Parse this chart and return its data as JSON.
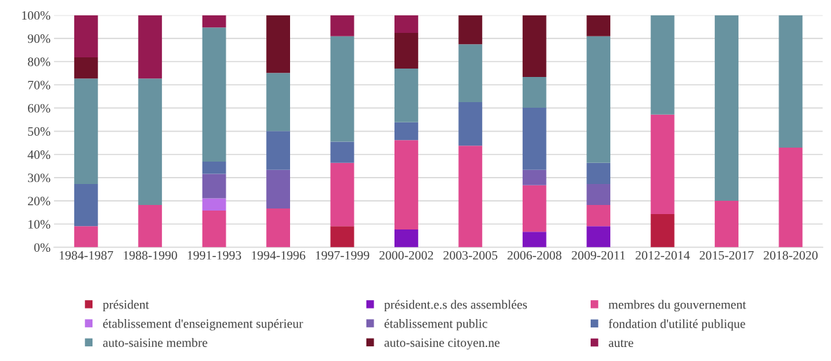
{
  "chart_data": {
    "type": "bar",
    "stacked": true,
    "categories": [
      "1984-1987",
      "1988-1990",
      "1991-1993",
      "1994-1996",
      "1997-1999",
      "2000-2002",
      "2003-2005",
      "2006-2008",
      "2009-2011",
      "2012-2014",
      "2015-2017",
      "2018-2020"
    ],
    "ylim": [
      0,
      100
    ],
    "yticks": [
      {
        "value": 0,
        "label": "0%"
      },
      {
        "value": 10,
        "label": "10%"
      },
      {
        "value": 20,
        "label": "20%"
      },
      {
        "value": 30,
        "label": "30%"
      },
      {
        "value": 40,
        "label": "40%"
      },
      {
        "value": 50,
        "label": "50%"
      },
      {
        "value": 60,
        "label": "60%"
      },
      {
        "value": 70,
        "label": "70%"
      },
      {
        "value": 80,
        "label": "80%"
      },
      {
        "value": 90,
        "label": "90%"
      },
      {
        "value": 100,
        "label": "100%"
      }
    ],
    "grid": "y",
    "legend": "bottom",
    "series": [
      {
        "name": "président",
        "color": "#b81e40",
        "values": [
          0,
          0,
          0,
          0,
          9.1,
          0,
          0,
          0,
          0,
          14.3,
          0,
          0
        ]
      },
      {
        "name": "président.e.s des assemblées",
        "color": "#7e14c0",
        "values": [
          0,
          0,
          0,
          0,
          0,
          7.7,
          0,
          6.7,
          9.1,
          0,
          0,
          0
        ]
      },
      {
        "name": "membres du gouvernement",
        "color": "#df488e",
        "values": [
          9.1,
          18.2,
          15.8,
          16.7,
          27.3,
          38.5,
          43.8,
          20,
          9.1,
          42.9,
          20,
          42.9
        ]
      },
      {
        "name": "établissement d'enseignement supérieur",
        "color": "#bb6fea",
        "values": [
          0,
          0,
          5.3,
          0,
          0,
          0,
          0,
          0,
          0,
          0,
          0,
          0
        ]
      },
      {
        "name": "établissement public",
        "color": "#7a60b0",
        "values": [
          0,
          0,
          10.5,
          16.7,
          0,
          0,
          0,
          6.7,
          9.1,
          0,
          0,
          0
        ]
      },
      {
        "name": "fondation d'utilité publique",
        "color": "#5970a8",
        "values": [
          18.2,
          0,
          5.3,
          16.7,
          9.1,
          7.7,
          18.7,
          26.7,
          9.1,
          0,
          0,
          0
        ]
      },
      {
        "name": "auto-saisine membre",
        "color": "#6893a0",
        "values": [
          45.4,
          54.5,
          57.8,
          25,
          45.4,
          23.1,
          25,
          13.3,
          54.5,
          42.8,
          80,
          57.1
        ]
      },
      {
        "name": "auto-saisine citoyen.ne",
        "color": "#6e1228",
        "values": [
          9.1,
          0,
          0,
          24.9,
          0,
          15.4,
          12.5,
          26.6,
          9.1,
          0,
          0,
          0
        ]
      },
      {
        "name": "autre",
        "color": "#961a52",
        "values": [
          18.2,
          27.3,
          5.3,
          0,
          9.1,
          7.6,
          0,
          0,
          0,
          0,
          0,
          0
        ]
      }
    ]
  }
}
